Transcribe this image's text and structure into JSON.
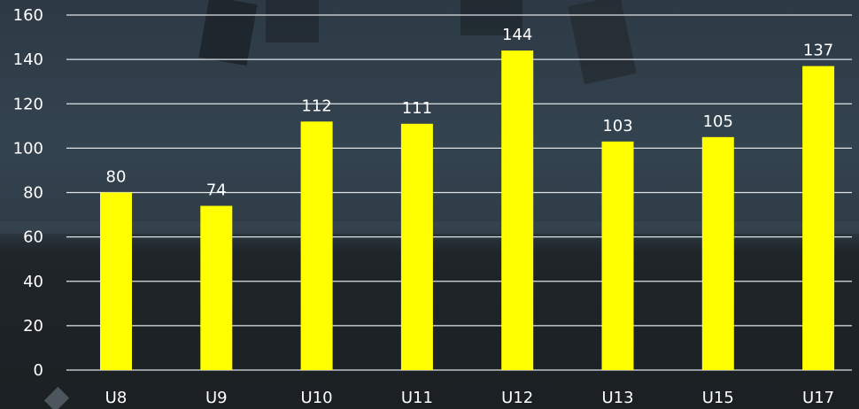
{
  "chart_data": {
    "type": "bar",
    "categories": [
      "U8",
      "U9",
      "U10",
      "U11",
      "U12",
      "U13",
      "U15",
      "U17"
    ],
    "values": [
      80,
      74,
      112,
      111,
      144,
      103,
      105,
      137
    ],
    "title": "",
    "xlabel": "",
    "ylabel": "",
    "ylim": [
      0,
      160
    ],
    "yticks": [
      0,
      20,
      40,
      60,
      80,
      100,
      120,
      140,
      160
    ],
    "grid": true,
    "legend": "none",
    "bar_color": "#ffff00",
    "grid_color": "#dfe3e6",
    "text_color": "#ffffff"
  }
}
